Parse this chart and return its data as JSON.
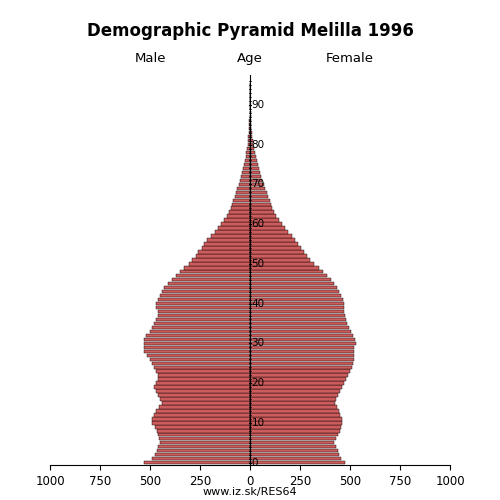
{
  "title": "Demographic Pyramid Melilla 1996",
  "label_male": "Male",
  "label_female": "Female",
  "label_age": "Age",
  "xlim": 1000,
  "bar_color": "#cd5c5c",
  "edge_color": "#000000",
  "background_color": "#ffffff",
  "url_text": "www.iz.sk/RES64",
  "ages": [
    0,
    1,
    2,
    3,
    4,
    5,
    6,
    7,
    8,
    9,
    10,
    11,
    12,
    13,
    14,
    15,
    16,
    17,
    18,
    19,
    20,
    21,
    22,
    23,
    24,
    25,
    26,
    27,
    28,
    29,
    30,
    31,
    32,
    33,
    34,
    35,
    36,
    37,
    38,
    39,
    40,
    41,
    42,
    43,
    44,
    45,
    46,
    47,
    48,
    49,
    50,
    51,
    52,
    53,
    54,
    55,
    56,
    57,
    58,
    59,
    60,
    61,
    62,
    63,
    64,
    65,
    66,
    67,
    68,
    69,
    70,
    71,
    72,
    73,
    74,
    75,
    76,
    77,
    78,
    79,
    80,
    81,
    82,
    83,
    84,
    85,
    86,
    87,
    88,
    89,
    90,
    91,
    92,
    93,
    94,
    95
  ],
  "male": [
    530,
    490,
    475,
    465,
    460,
    450,
    455,
    460,
    465,
    475,
    490,
    488,
    480,
    468,
    455,
    442,
    448,
    458,
    468,
    478,
    470,
    462,
    460,
    468,
    478,
    492,
    502,
    515,
    528,
    530,
    532,
    528,
    518,
    502,
    490,
    478,
    468,
    458,
    460,
    468,
    470,
    462,
    452,
    442,
    432,
    412,
    392,
    372,
    350,
    330,
    305,
    288,
    272,
    258,
    242,
    228,
    214,
    195,
    176,
    160,
    145,
    130,
    116,
    106,
    96,
    90,
    85,
    77,
    70,
    63,
    56,
    48,
    43,
    38,
    34,
    30,
    26,
    22,
    18,
    15,
    12,
    10,
    8,
    6,
    5,
    4,
    3,
    2,
    2,
    1,
    1,
    1,
    0,
    0,
    0,
    0
  ],
  "female": [
    475,
    455,
    445,
    438,
    430,
    420,
    428,
    438,
    448,
    455,
    462,
    460,
    452,
    446,
    436,
    426,
    432,
    442,
    452,
    462,
    472,
    482,
    492,
    502,
    510,
    516,
    518,
    522,
    518,
    518,
    528,
    526,
    516,
    506,
    496,
    486,
    480,
    475,
    470,
    468,
    472,
    466,
    456,
    446,
    436,
    420,
    405,
    386,
    366,
    346,
    318,
    302,
    287,
    272,
    257,
    242,
    224,
    208,
    190,
    175,
    160,
    145,
    130,
    120,
    110,
    105,
    100,
    90,
    84,
    76,
    68,
    61,
    55,
    49,
    43,
    38,
    33,
    28,
    24,
    20,
    17,
    13,
    11,
    9,
    7,
    6,
    5,
    4,
    3,
    2,
    2,
    1,
    1,
    1,
    0,
    0
  ]
}
